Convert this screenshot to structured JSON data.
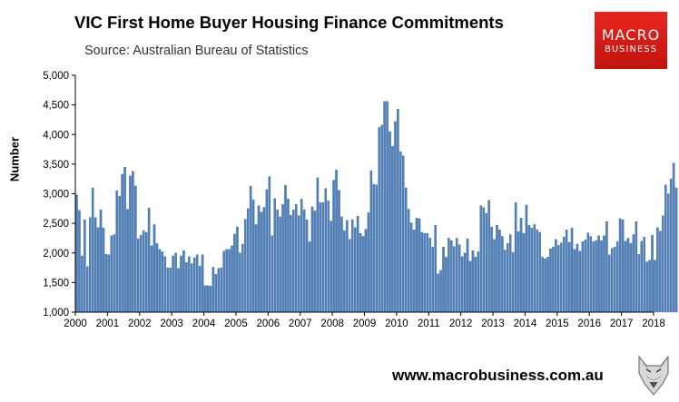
{
  "title": "VIC First Home Buyer Housing Finance Commitments",
  "subtitle": "Source: Australian Bureau of Statistics",
  "logo": {
    "line1": "MACRO",
    "line2": "BUSINESS",
    "icon": "macro-business-logo"
  },
  "footer_url": "www.macrobusiness.com.au",
  "wolf_icon": "wolf-mascot-icon",
  "colors": {
    "bar": "#4f81bd",
    "bar_edge": "#385d8a",
    "logo_red": "#e02a20"
  },
  "chart_data": {
    "type": "bar",
    "title": "VIC First Home Buyer Housing Finance Commitments",
    "subtitle": "Source: Australian Bureau of Statistics",
    "ylabel": "Number",
    "xlabel": "",
    "ylim": [
      1000,
      5000
    ],
    "yticks": [
      "1,000",
      "1,500",
      "2,000",
      "2,500",
      "3,000",
      "3,500",
      "4,000",
      "4,500",
      "5,000"
    ],
    "xticks": [
      "2000",
      "2001",
      "2002",
      "2003",
      "2004",
      "2005",
      "2006",
      "2007",
      "2008",
      "2009",
      "2010",
      "2011",
      "2012",
      "2013",
      "2014",
      "2015",
      "2016",
      "2017",
      "2018"
    ],
    "x_start": "2000-01",
    "frequency": "monthly",
    "grid": false,
    "legend": "none",
    "values": [
      2980,
      2720,
      1950,
      2560,
      1770,
      2600,
      3100,
      2600,
      2430,
      2730,
      2420,
      1980,
      1970,
      2290,
      2310,
      3050,
      2960,
      3330,
      3450,
      2740,
      3300,
      3380,
      3130,
      2240,
      2300,
      2380,
      2350,
      2760,
      2120,
      2480,
      2160,
      2060,
      2020,
      1940,
      1750,
      1750,
      1950,
      2000,
      1740,
      1950,
      2040,
      1840,
      1940,
      1820,
      1920,
      1970,
      1780,
      1970,
      1450,
      1450,
      1440,
      1760,
      1640,
      1740,
      1750,
      2030,
      2060,
      2060,
      2120,
      2320,
      2440,
      2000,
      2150,
      2570,
      2750,
      3130,
      2900,
      2480,
      2800,
      2690,
      2770,
      3070,
      3290,
      2290,
      2920,
      2730,
      2610,
      2820,
      3140,
      2910,
      2640,
      2730,
      2820,
      2630,
      2910,
      2730,
      2560,
      2190,
      2780,
      2710,
      3270,
      2850,
      2850,
      3090,
      2880,
      2540,
      3230,
      3400,
      3060,
      2610,
      2380,
      2550,
      2230,
      2560,
      2430,
      2620,
      2330,
      2280,
      2400,
      2680,
      3390,
      3160,
      3150,
      4120,
      4160,
      4560,
      4560,
      4050,
      3800,
      4220,
      4430,
      3710,
      3640,
      3100,
      2740,
      2510,
      2390,
      2590,
      2580,
      2350,
      2330,
      2330,
      2250,
      2100,
      2470,
      1650,
      1710,
      2100,
      1930,
      2250,
      2210,
      2110,
      2250,
      2140,
      1940,
      2000,
      2240,
      1860,
      2040,
      1930,
      2020,
      2800,
      2770,
      2670,
      2890,
      2440,
      2230,
      2470,
      2390,
      2280,
      2050,
      2160,
      2310,
      2010,
      2850,
      2360,
      2590,
      2330,
      2810,
      2470,
      2420,
      2480,
      2390,
      2350,
      1930,
      1900,
      1930,
      2070,
      2100,
      2230,
      2130,
      2170,
      2270,
      2390,
      2180,
      2420,
      2060,
      2150,
      2030,
      2190,
      2220,
      2340,
      2280,
      2190,
      2210,
      2290,
      2210,
      2290,
      2530,
      1970,
      2080,
      2100,
      2190,
      2580,
      2560,
      2200,
      2250,
      2160,
      2310,
      2530,
      1980,
      2200,
      2270,
      1850,
      1880,
      2300,
      1880,
      2430,
      2370,
      2630,
      3150,
      3000,
      3250,
      3520,
      3100
    ]
  }
}
